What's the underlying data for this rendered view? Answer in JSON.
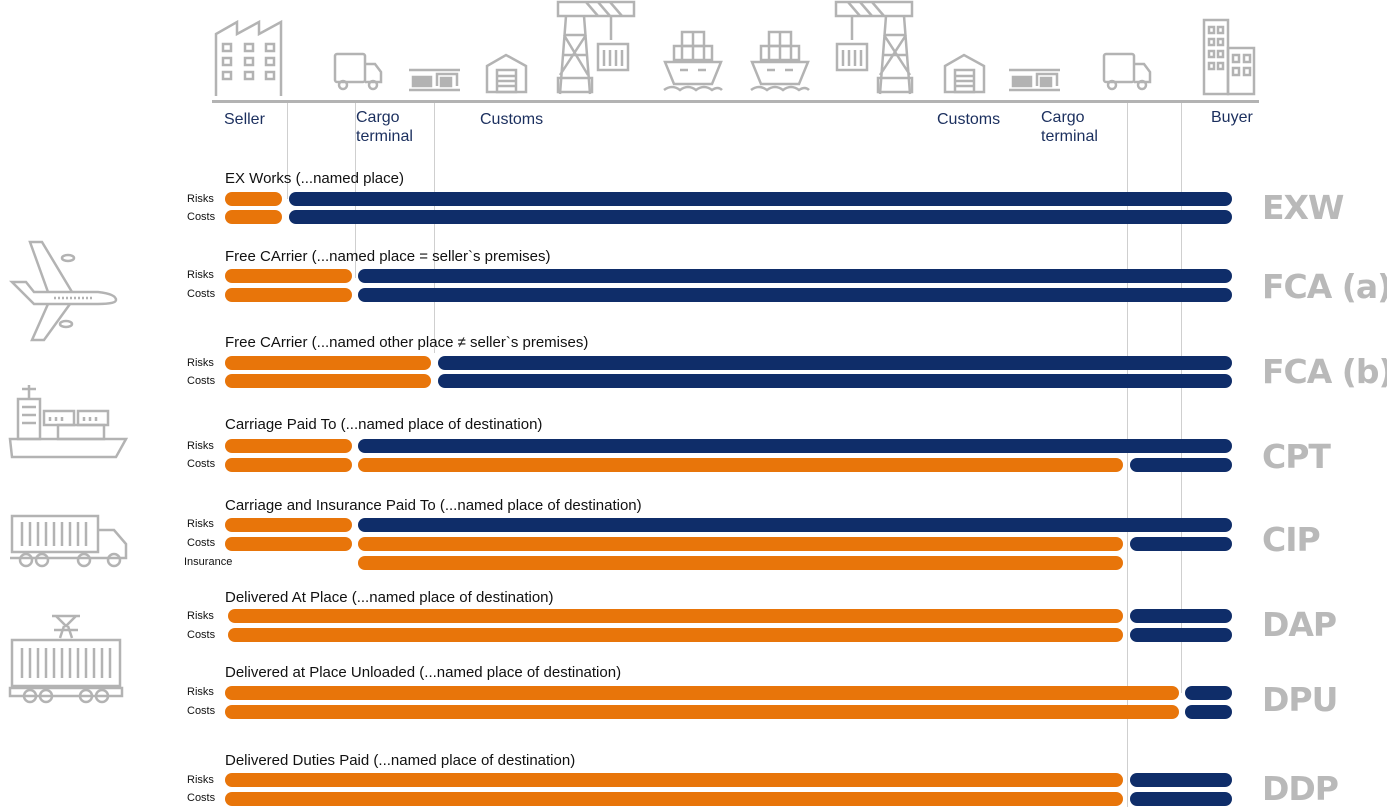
{
  "colors": {
    "seller": "#e8750a",
    "buyer": "#0f2d69",
    "code": "#b9b9b9",
    "icon": "#b3b3b3",
    "line": "#cfcfcf"
  },
  "locations": {
    "seller": "Seller",
    "cargo_terminal_1": "Cargo",
    "cargo_terminal_1b": "terminal",
    "customs_1": "Customs",
    "customs_2": "Customs",
    "cargo_terminal_2": "Cargo",
    "cargo_terminal_2b": "terminal",
    "buyer": "Buyer"
  },
  "top_icons": [
    "factory-icon",
    "delivery-truck-icon",
    "cargo-terminal-icon",
    "warehouse-icon",
    "port-crane-icon",
    "container-ship-icon",
    "container-ship-icon",
    "port-crane-icon",
    "warehouse-icon",
    "cargo-terminal-icon",
    "delivery-truck-icon",
    "office-building-icon"
  ],
  "side_icons": [
    "airplane-icon",
    "cargo-ship-icon",
    "container-truck-icon",
    "freight-train-icon"
  ],
  "terms": [
    {
      "code": "EXW",
      "title": "EX Works (...named place)",
      "rows": [
        {
          "label": "Risks",
          "seller_until": "seller",
          "buyer_until": "buyer"
        },
        {
          "label": "Costs",
          "seller_until": "seller",
          "buyer_until": "buyer"
        }
      ]
    },
    {
      "code": "FCA (a)",
      "title": "Free CArrier (...named place = seller`s premises)",
      "rows": [
        {
          "label": "Risks",
          "seller_until": "cargo terminal",
          "buyer_until": "buyer"
        },
        {
          "label": "Costs",
          "seller_until": "cargo terminal",
          "buyer_until": "buyer"
        }
      ]
    },
    {
      "code": "FCA (b)",
      "title": "Free CArrier (...named other place ≠ seller`s premises)",
      "rows": [
        {
          "label": "Risks",
          "seller_until": "customs",
          "buyer_until": "buyer"
        },
        {
          "label": "Costs",
          "seller_until": "customs",
          "buyer_until": "buyer"
        }
      ]
    },
    {
      "code": "CPT",
      "title": "Carriage Paid To (...named place of destination)",
      "rows": [
        {
          "label": "Risks",
          "seller_until": "cargo terminal",
          "buyer_until": "buyer"
        },
        {
          "label": "Costs",
          "seller_until": "destination cargo terminal",
          "buyer_until": "buyer"
        }
      ]
    },
    {
      "code": "CIP",
      "title": "Carriage and Insurance Paid To (...named place of destination)",
      "rows": [
        {
          "label": "Risks",
          "seller_until": "cargo terminal",
          "buyer_until": "buyer"
        },
        {
          "label": "Costs",
          "seller_until": "destination cargo terminal",
          "buyer_until": "buyer"
        },
        {
          "label": "Insurance",
          "seller_until": "destination cargo terminal",
          "buyer_until": ""
        }
      ]
    },
    {
      "code": "DAP",
      "title": "Delivered At Place (...named place of destination)",
      "rows": [
        {
          "label": "Risks",
          "seller_until": "destination cargo terminal",
          "buyer_until": "buyer"
        },
        {
          "label": "Costs",
          "seller_until": "destination cargo terminal",
          "buyer_until": "buyer"
        }
      ]
    },
    {
      "code": "DPU",
      "title": "Delivered at Place Unloaded (...named place of destination)",
      "rows": [
        {
          "label": "Risks",
          "seller_until": "destination",
          "buyer_until": "buyer"
        },
        {
          "label": "Costs",
          "seller_until": "destination",
          "buyer_until": "buyer"
        }
      ]
    },
    {
      "code": "DDP",
      "title": "Delivered Duties Paid (...named place of destination)",
      "rows": [
        {
          "label": "Risks",
          "seller_until": "destination cargo terminal",
          "buyer_until": "buyer"
        },
        {
          "label": "Costs",
          "seller_until": "destination cargo terminal",
          "buyer_until": "buyer"
        }
      ]
    }
  ]
}
